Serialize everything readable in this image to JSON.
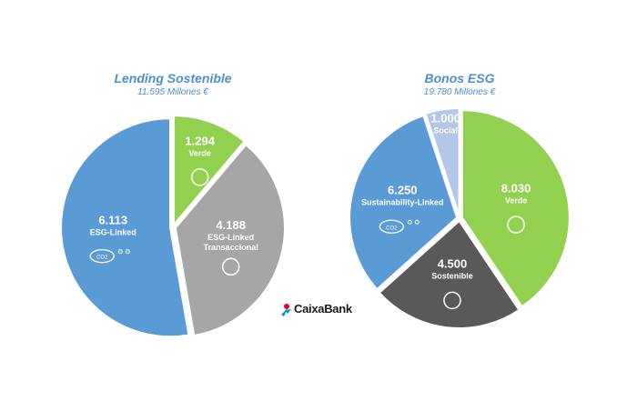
{
  "brand": "CaixaBank",
  "chart_data": [
    {
      "type": "pie",
      "title": "Lending Sostenible",
      "subtitle": "11.595 Millones €",
      "categories": [
        "Verde",
        "ESG-Linked Transaccional",
        "ESG-Linked"
      ],
      "values": [
        1294,
        4188,
        6113
      ],
      "value_labels": [
        "1.294",
        "4.188",
        "6.113"
      ],
      "colors": [
        "#92d050",
        "#a6a6a6",
        "#5b9bd5"
      ],
      "annotations": [
        "CO2"
      ]
    },
    {
      "type": "pie",
      "title": "Bonos ESG",
      "subtitle": "19.780 Millones €",
      "categories": [
        "Verde",
        "Sostenible",
        "Sustainability-Linked",
        "Social"
      ],
      "values": [
        8030,
        4500,
        6250,
        1000
      ],
      "value_labels": [
        "8.030",
        "4.500",
        "6.250",
        "1.000"
      ],
      "colors": [
        "#92d050",
        "#595959",
        "#5b9bd5",
        "#b4c7e7"
      ],
      "annotations": [
        "CO2"
      ]
    }
  ]
}
